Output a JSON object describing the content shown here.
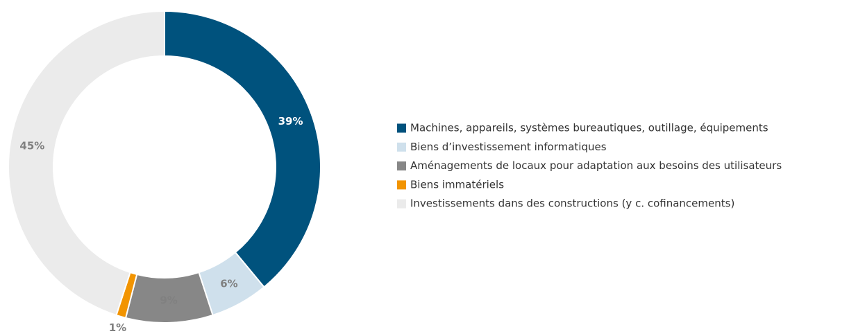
{
  "chart_data": {
    "type": "donut",
    "categories": [
      "Machines, appareils, systèmes bureautiques, outillage, équipements",
      "Biens d’investissement informatiques",
      "Aménagements de locaux pour adaptation aux besoins des utilisateurs",
      "Biens immatériels",
      "Investissements dans des constructions (y c. cofinancements)"
    ],
    "values": [
      39,
      6,
      9,
      1,
      45
    ],
    "value_labels": [
      "39%",
      "6%",
      "9%",
      "1%",
      "45%"
    ],
    "colors": [
      "#00527d",
      "#cfe0ec",
      "#878787",
      "#f29400",
      "#ebebeb"
    ],
    "legend": "right"
  }
}
